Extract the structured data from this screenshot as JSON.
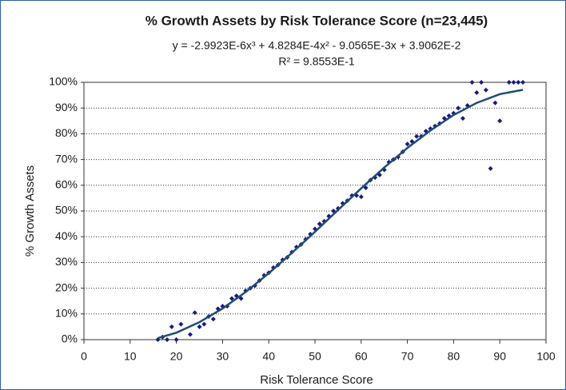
{
  "chart_data": {
    "type": "scatter",
    "title": "% Growth Assets by Risk Tolerance Score (n=23,445)",
    "subtitle": [
      "y = -2.9923E-6x³ + 4.8284E-4x² - 9.0565E-3x + 3.9062E-2",
      "R² = 9.8553E-1"
    ],
    "x_label": "Risk Tolerance Score",
    "y_label": "% Growth Assets",
    "xlim": [
      0,
      100
    ],
    "xticks": [
      0,
      10,
      20,
      30,
      40,
      50,
      60,
      70,
      80,
      90,
      100
    ],
    "ylim": [
      0,
      100
    ],
    "yticks": [
      {
        "value": 0,
        "label": "0%"
      },
      {
        "value": 10,
        "label": "10%"
      },
      {
        "value": 20,
        "label": "20%"
      },
      {
        "value": 30,
        "label": "30%"
      },
      {
        "value": 40,
        "label": "40%"
      },
      {
        "value": 50,
        "label": "50%"
      },
      {
        "value": 60,
        "label": "60%"
      },
      {
        "value": 70,
        "label": "70%"
      },
      {
        "value": 80,
        "label": "80%"
      },
      {
        "value": 90,
        "label": "90%"
      },
      {
        "value": 100,
        "label": "100%"
      }
    ],
    "grid": true,
    "series": [
      {
        "color": "#1a1a80",
        "x": [
          16,
          17,
          18,
          19,
          20,
          21,
          23,
          24,
          25,
          26,
          27,
          28,
          29,
          30,
          31,
          32,
          33,
          34,
          35,
          36,
          37,
          38,
          39,
          40,
          41,
          42,
          43,
          44,
          45,
          46,
          47,
          48,
          49,
          50,
          51,
          52,
          53,
          54,
          55,
          56,
          57,
          58,
          59,
          60,
          61,
          62,
          63,
          64,
          65,
          66,
          67,
          68,
          69,
          70,
          71,
          72,
          73,
          74,
          75,
          76,
          77,
          78,
          79,
          80,
          81,
          82,
          83,
          84,
          85,
          86,
          87,
          88,
          89,
          90,
          92,
          93,
          94,
          95
        ],
        "values": [
          0,
          1,
          0,
          5,
          0,
          6,
          2,
          10.5,
          5,
          6,
          9,
          8,
          12,
          13,
          13,
          16,
          17,
          16,
          19,
          20,
          21,
          23,
          25,
          26,
          28,
          29,
          31,
          32,
          34,
          36,
          37,
          39,
          41,
          43,
          45,
          46,
          48,
          50,
          51,
          53,
          54,
          56,
          56,
          55.5,
          59,
          62,
          63,
          64,
          66,
          69,
          70,
          71,
          73,
          76,
          77,
          79,
          79,
          81,
          82,
          83,
          84,
          86,
          87,
          88,
          90,
          86,
          91,
          100,
          96,
          100,
          97,
          66.5,
          92,
          85,
          100,
          100,
          100,
          100
        ]
      },
      {
        "color": "#1f4e6e",
        "line": true,
        "x": [
          16,
          20,
          25,
          30,
          35,
          40,
          45,
          50,
          55,
          60,
          65,
          70,
          75,
          80,
          85,
          90,
          95
        ],
        "values": [
          0.6,
          2.7,
          6.8,
          12.1,
          18.5,
          25.8,
          33.7,
          41.9,
          50.4,
          58.8,
          66.9,
          74.5,
          81.3,
          87.3,
          92.0,
          95.4,
          97.1
        ]
      }
    ]
  }
}
